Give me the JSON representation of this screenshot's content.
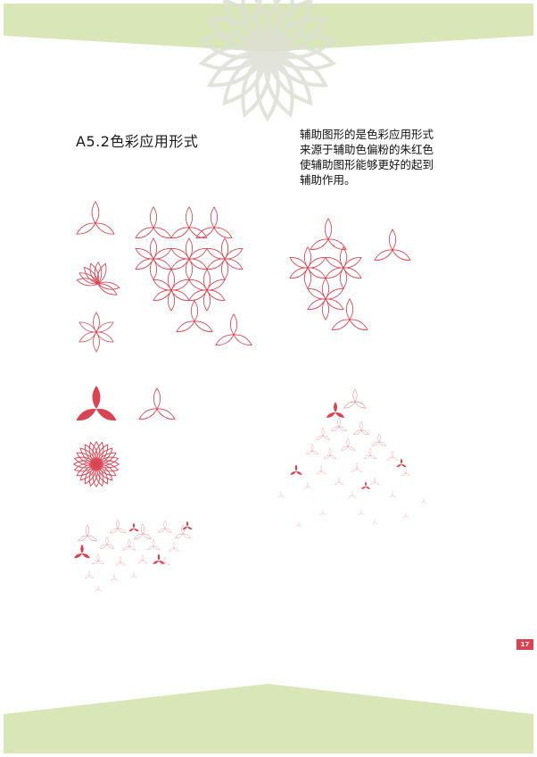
{
  "section_title": "A5.2色彩应用形式",
  "description_lines": [
    "辅助图形的是色彩应用形式",
    "来源于辅助色偏粉的朱红色",
    "使辅助图形能够更好的起到",
    "辅助作用。"
  ],
  "page_number": "17",
  "colors": {
    "accent": "#d94452",
    "band": "#d9e6b8",
    "watermark": "#dfe0d6"
  }
}
